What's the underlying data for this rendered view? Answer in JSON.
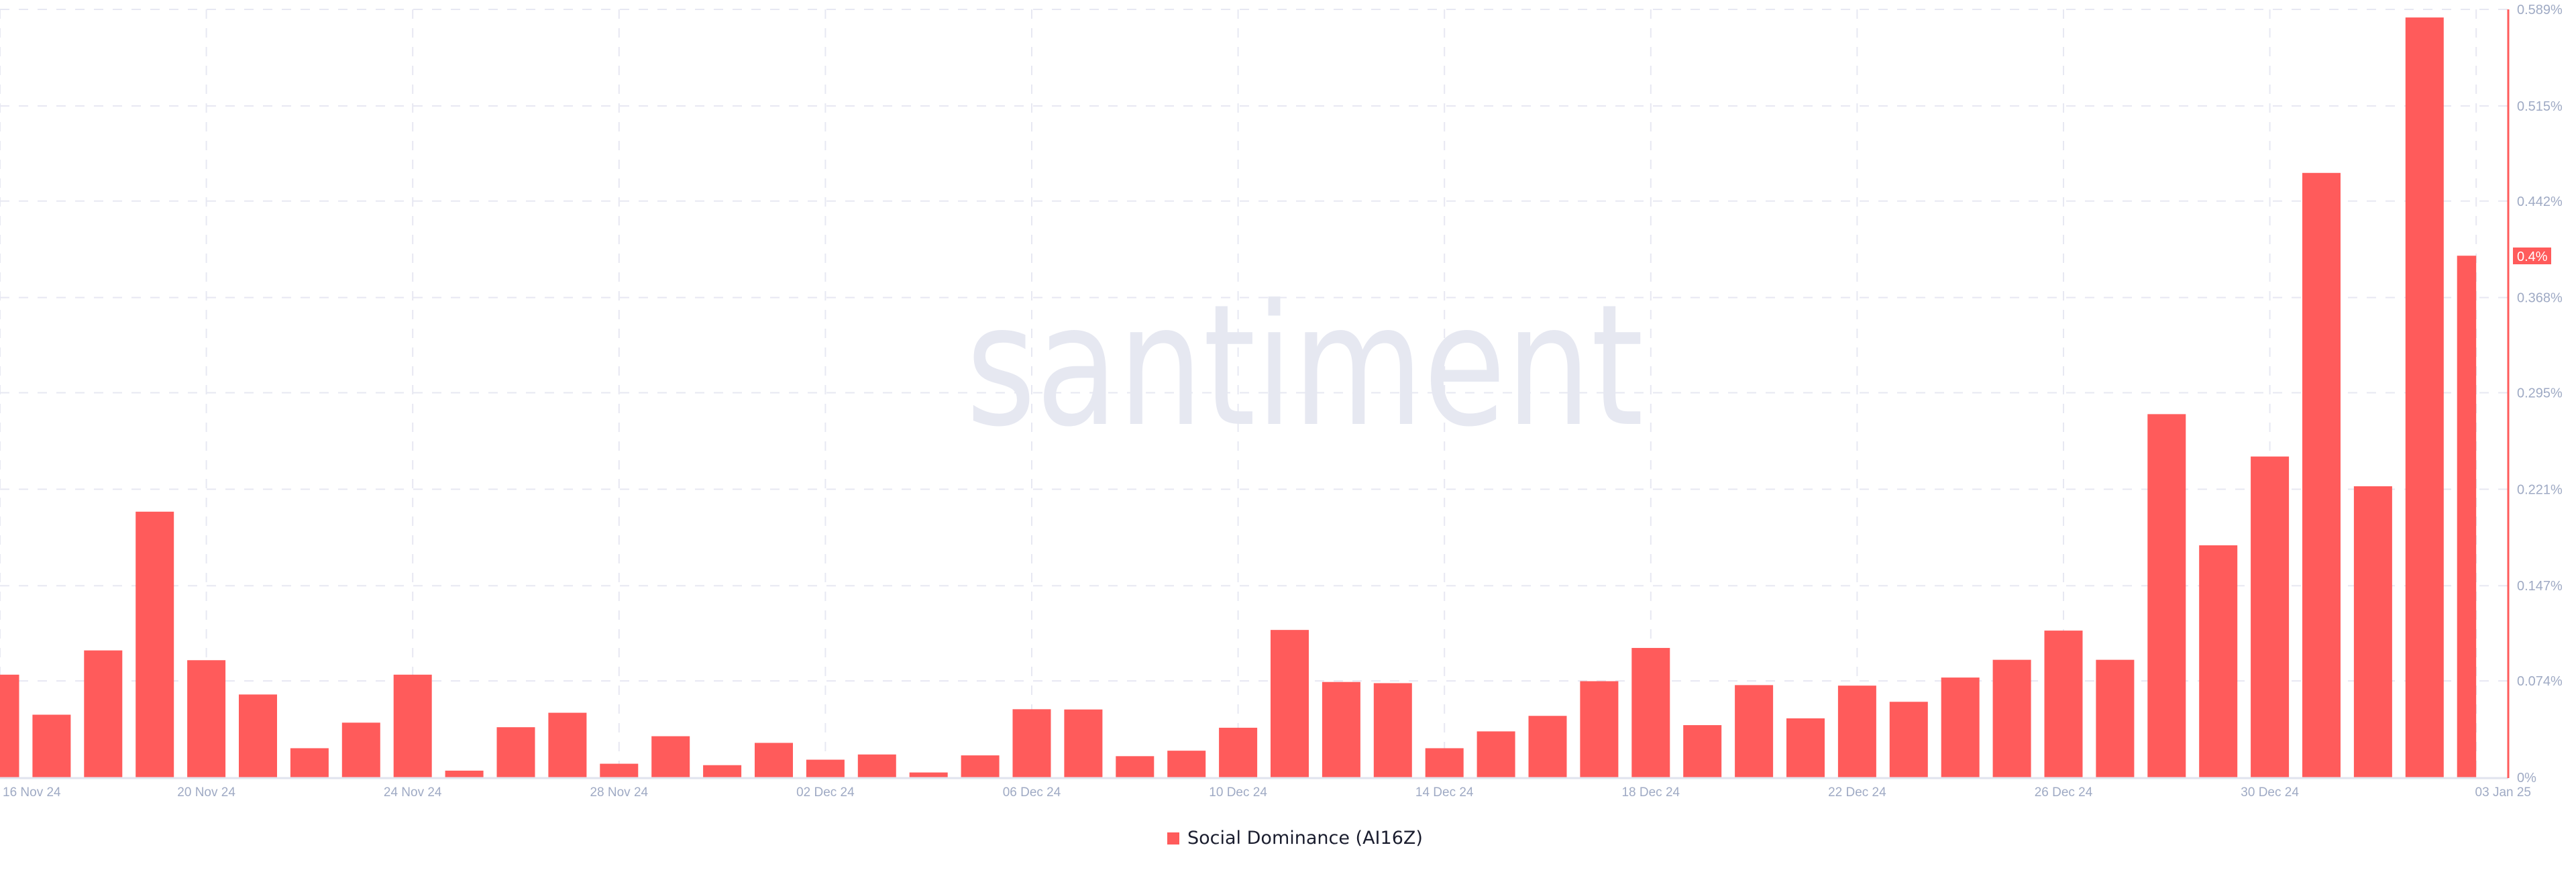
{
  "watermark": "santiment",
  "chart_data": {
    "type": "bar",
    "title": "",
    "xlabel": "",
    "ylabel": "",
    "x": [
      "16 Nov 24",
      "17 Nov 24",
      "18 Nov 24",
      "19 Nov 24",
      "20 Nov 24",
      "21 Nov 24",
      "22 Nov 24",
      "23 Nov 24",
      "24 Nov 24",
      "25 Nov 24",
      "26 Nov 24",
      "27 Nov 24",
      "28 Nov 24",
      "29 Nov 24",
      "30 Nov 24",
      "01 Dec 24",
      "02 Dec 24",
      "03 Dec 24",
      "04 Dec 24",
      "05 Dec 24",
      "06 Dec 24",
      "07 Dec 24",
      "08 Dec 24",
      "09 Dec 24",
      "10 Dec 24",
      "11 Dec 24",
      "12 Dec 24",
      "13 Dec 24",
      "14 Dec 24",
      "15 Dec 24",
      "16 Dec 24",
      "17 Dec 24",
      "18 Dec 24",
      "19 Dec 24",
      "20 Dec 24",
      "21 Dec 24",
      "22 Dec 24",
      "23 Dec 24",
      "24 Dec 24",
      "25 Dec 24",
      "26 Dec 24",
      "27 Dec 24",
      "28 Dec 24",
      "29 Dec 24",
      "30 Dec 24",
      "31 Dec 24",
      "01 Jan 25",
      "02 Jan 25",
      "03 Jan 25"
    ],
    "series": [
      {
        "name": "Social Dominance (AI16Z)",
        "color": "#ff5b5b",
        "unit": "%",
        "values": [
          0.0788,
          0.0481,
          0.0974,
          0.2038,
          0.0899,
          0.0636,
          0.0224,
          0.042,
          0.0788,
          0.0052,
          0.0385,
          0.0496,
          0.0105,
          0.0316,
          0.0094,
          0.0265,
          0.0136,
          0.0176,
          0.0038,
          0.0169,
          0.0523,
          0.0521,
          0.0163,
          0.0205,
          0.0381,
          0.1131,
          0.0732,
          0.0723,
          0.0224,
          0.0353,
          0.0472,
          0.0738,
          0.0993,
          0.0401,
          0.0708,
          0.0453,
          0.0704,
          0.058,
          0.0766,
          0.0902,
          0.1126,
          0.0902,
          0.2786,
          0.178,
          0.2461,
          0.4636,
          0.2233,
          0.5828,
          0.4001
        ]
      }
    ],
    "x_tick_labels": [
      "16 Nov 24",
      "20 Nov 24",
      "24 Nov 24",
      "28 Nov 24",
      "02 Dec 24",
      "06 Dec 24",
      "10 Dec 24",
      "14 Dec 24",
      "18 Dec 24",
      "22 Dec 24",
      "26 Dec 24",
      "30 Dec 24",
      "03 Jan 25"
    ],
    "y_tick_values": [
      0,
      0.074,
      0.147,
      0.221,
      0.295,
      0.368,
      0.442,
      0.515,
      0.589
    ],
    "y_tick_labels": [
      "0%",
      "0.074%",
      "0.147%",
      "0.221%",
      "0.295%",
      "0.368%",
      "0.442%",
      "0.515%",
      "0.589%"
    ],
    "ylim": [
      0,
      0.589
    ],
    "y_axis_side": "right",
    "grid": true,
    "last_value_label": "0.4%",
    "legend": {
      "position": "bottom-center",
      "entries": [
        "Social Dominance (AI16Z)"
      ]
    },
    "colors": {
      "bar": "#ff5b5b",
      "grid": "#e7e8f2",
      "tick_text": "#9faac4",
      "watermark": "#e6e8f1"
    }
  }
}
